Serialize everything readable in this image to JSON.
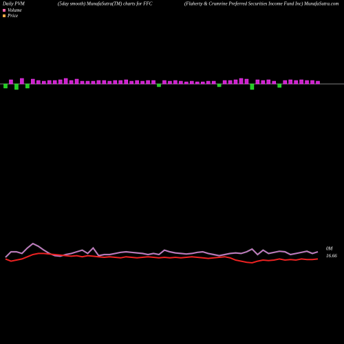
{
  "chart_data": [
    {
      "type": "bar",
      "title": "Daily PVM",
      "subtitle": "(5day smooth) MunafaSutra(TM) charts for FFC",
      "caption": "(Flaherty & Crumrine  Preferred Securities Income  Fund Inc) MunafaSutra.com",
      "up_color": "#cc22cc",
      "down_color": "#22cc22",
      "values": [
        -6,
        6,
        -8,
        8,
        -6,
        7,
        5,
        4,
        5,
        5,
        6,
        8,
        5,
        7,
        4,
        4,
        4,
        5,
        5,
        4,
        5,
        5,
        6,
        4,
        5,
        4,
        5,
        5,
        -4,
        5,
        4,
        5,
        4,
        3,
        4,
        3,
        3,
        4,
        4,
        -4,
        5,
        5,
        6,
        8,
        7,
        -8,
        6,
        5,
        6,
        4,
        -5,
        5,
        6,
        5,
        6,
        5,
        5,
        4
      ]
    },
    {
      "type": "line",
      "ylim": [
        0,
        100
      ],
      "series": [
        {
          "name": "Volume",
          "color": "#cc66cc",
          "end_label": "0M",
          "values": [
            45,
            55,
            55,
            52,
            62,
            70,
            65,
            58,
            52,
            48,
            47,
            50,
            52,
            55,
            58,
            52,
            62,
            48,
            50,
            50,
            52,
            54,
            55,
            54,
            53,
            52,
            50,
            52,
            50,
            58,
            55,
            53,
            52,
            51,
            52,
            54,
            55,
            52,
            50,
            48,
            50,
            52,
            53,
            52,
            55,
            60,
            50,
            58,
            52,
            54,
            56,
            55,
            50,
            52,
            54,
            56,
            52,
            55
          ]
        },
        {
          "name": "Price",
          "color": "#ee2222",
          "end_label": "16.66",
          "values": [
            42,
            38,
            40,
            42,
            46,
            50,
            52,
            52,
            51,
            50,
            49,
            48,
            47,
            48,
            46,
            48,
            47,
            46,
            45,
            46,
            45,
            44,
            46,
            45,
            44,
            45,
            46,
            45,
            44,
            45,
            44,
            45,
            44,
            45,
            46,
            45,
            44,
            43,
            44,
            45,
            46,
            44,
            40,
            38,
            36,
            35,
            38,
            40,
            39,
            40,
            42,
            40,
            41,
            40,
            42,
            41,
            41,
            42
          ]
        }
      ]
    }
  ]
}
